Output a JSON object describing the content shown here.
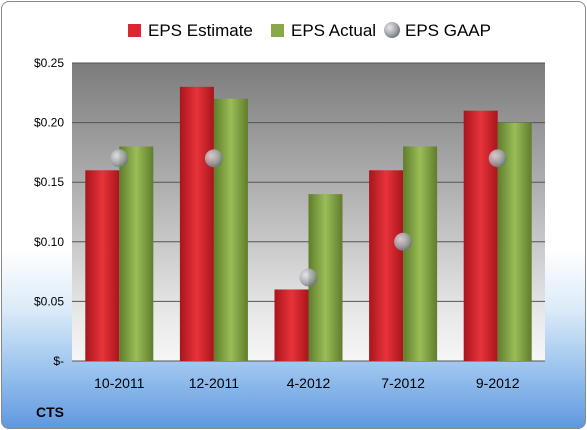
{
  "chart_data": {
    "type": "bar",
    "categories": [
      "10-2011",
      "12-2011",
      "4-2012",
      "7-2012",
      "9-2012"
    ],
    "series": [
      {
        "name": "EPS Estimate",
        "kind": "bar",
        "color": "#d9282f",
        "values": [
          0.16,
          0.23,
          0.06,
          0.16,
          0.21
        ]
      },
      {
        "name": "EPS Actual",
        "kind": "bar",
        "color": "#8aa84a",
        "values": [
          0.18,
          0.22,
          0.14,
          0.18,
          0.2
        ]
      },
      {
        "name": "EPS GAAP",
        "kind": "marker",
        "color": "#b8bcc4",
        "values": [
          0.17,
          0.17,
          0.07,
          0.1,
          0.17
        ]
      }
    ],
    "ylim": [
      0,
      0.25
    ],
    "yticks": [
      0,
      0.05,
      0.1,
      0.15,
      0.2,
      0.25
    ],
    "ytick_labels": [
      "$-",
      "$0.05",
      "$0.10",
      "$0.15",
      "$0.20",
      "$0.25"
    ],
    "grid": true,
    "legend_position": "top"
  },
  "footer_label": "CTS"
}
